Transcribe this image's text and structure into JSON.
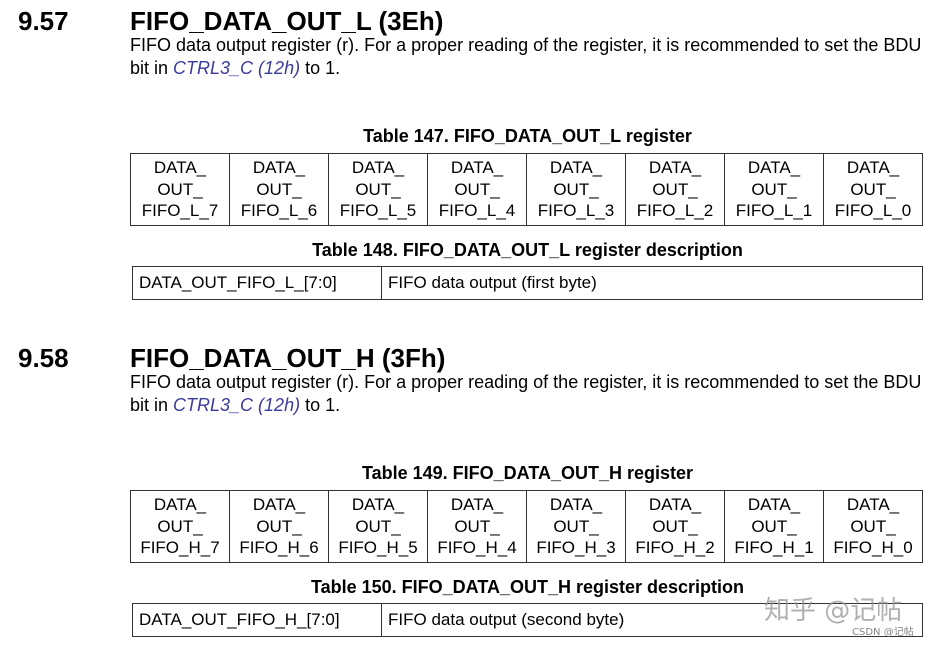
{
  "sections": [
    {
      "number": "9.57",
      "title": "FIFO_DATA_OUT_L (3Eh)",
      "body_before": "FIFO data output register (r). For a proper reading of the register, it is recommended to set the BDU bit in ",
      "body_link": "CTRL3_C (12h)",
      "body_after": " to 1.",
      "register_table_caption": "Table 147. FIFO_DATA_OUT_L register",
      "register_bits": [
        "DATA_\nOUT_\nFIFO_L_7",
        "DATA_\nOUT_\nFIFO_L_6",
        "DATA_\nOUT_\nFIFO_L_5",
        "DATA_\nOUT_\nFIFO_L_4",
        "DATA_\nOUT_\nFIFO_L_3",
        "DATA_\nOUT_\nFIFO_L_2",
        "DATA_\nOUT_\nFIFO_L_1",
        "DATA_\nOUT_\nFIFO_L_0"
      ],
      "description_table_caption": "Table 148. FIFO_DATA_OUT_L register description",
      "description_field": "DATA_OUT_FIFO_L_[7:0]",
      "description_text": "FIFO data output (first byte)"
    },
    {
      "number": "9.58",
      "title": "FIFO_DATA_OUT_H (3Fh)",
      "body_before": "FIFO data output register (r). For a proper reading of the register, it is recommended to set the BDU bit in ",
      "body_link": "CTRL3_C (12h)",
      "body_after": " to 1.",
      "register_table_caption": "Table 149. FIFO_DATA_OUT_H register",
      "register_bits": [
        "DATA_\nOUT_\nFIFO_H_7",
        "DATA_\nOUT_\nFIFO_H_6",
        "DATA_\nOUT_\nFIFO_H_5",
        "DATA_\nOUT_\nFIFO_H_4",
        "DATA_\nOUT_\nFIFO_H_3",
        "DATA_\nOUT_\nFIFO_H_2",
        "DATA_\nOUT_\nFIFO_H_1",
        "DATA_\nOUT_\nFIFO_H_0"
      ],
      "description_table_caption": "Table 150. FIFO_DATA_OUT_H register description",
      "description_field": "DATA_OUT_FIFO_H_[7:0]",
      "description_text": "FIFO data output (second byte)"
    }
  ],
  "watermark": {
    "main": "知乎 @记帖",
    "small": "CSDN @记帖"
  },
  "colors": {
    "link": "#3b3b9a",
    "border": "#333333"
  }
}
